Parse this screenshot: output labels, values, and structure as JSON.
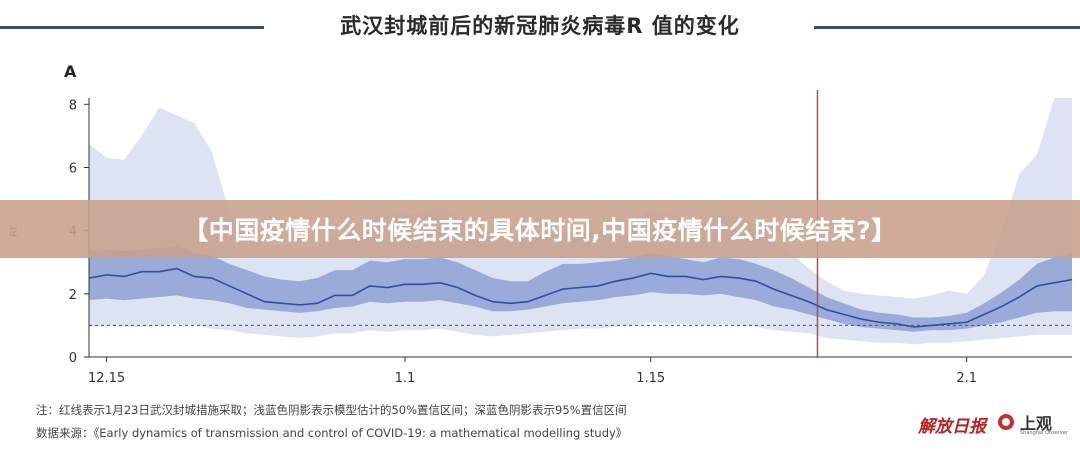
{
  "header": {
    "title": "武汉封城前后的新冠肺炎病毒R  值的变化",
    "panel_label": "A"
  },
  "banner": {
    "text": "【中国疫情什么时候结束的具体时间,中国疫情什么时候结束?】"
  },
  "footer": {
    "note": "注：红线表示1月23日武汉封城措施采取；浅蓝色阴影表示模型估计的50%置信区间；深蓝色阴影表示95%置信区间",
    "source": "数据来源：《Early dynamics of transmission and control of COVID-19: a mathematical modelling study》",
    "logo_left": "解放日报",
    "logo_right": "上观",
    "logo_right_sub": "Shanghai Observer"
  },
  "colors": {
    "median_line": "#2f4fa0",
    "band_outer": "#dde3f3",
    "band_inner": "#9aabd9",
    "lockdown_line": "#c8473d",
    "reference_line": "#555555",
    "title_rule": "#3a4a6b",
    "banner_bg": "#c8a08c"
  },
  "chart_data": {
    "type": "area",
    "title": "武汉封城前后的新冠肺炎病毒R  值的变化",
    "xlabel": "",
    "ylabel": "Rt",
    "x_tick_labels": [
      "12.15",
      "1.1",
      "1.15",
      "2.1"
    ],
    "x_tick_positions": [
      1,
      18,
      32,
      50
    ],
    "xlim": [
      0,
      56
    ],
    "y_ticks": [
      0,
      2,
      4,
      6,
      8
    ],
    "ylim": [
      0,
      8.2
    ],
    "grid": false,
    "reference_line": {
      "y": 1.0,
      "style": "dashed"
    },
    "event_line": {
      "x": 41.5,
      "label": "1月23日武汉封城"
    },
    "x": [
      0,
      1,
      2,
      3,
      4,
      5,
      6,
      7,
      8,
      9,
      10,
      11,
      12,
      13,
      14,
      15,
      16,
      17,
      18,
      19,
      20,
      21,
      22,
      23,
      24,
      25,
      26,
      27,
      28,
      29,
      30,
      31,
      32,
      33,
      34,
      35,
      36,
      37,
      38,
      39,
      40,
      41,
      42,
      43,
      44,
      45,
      46,
      47,
      48,
      49,
      50,
      51,
      52,
      53,
      54,
      55,
      56
    ],
    "series": [
      {
        "values": [
          2.5,
          2.6,
          2.55,
          2.7,
          2.7,
          2.8,
          2.55,
          2.5,
          2.25,
          2.0,
          1.75,
          1.7,
          1.65,
          1.7,
          1.95,
          1.95,
          2.25,
          2.2,
          2.3,
          2.3,
          2.35,
          2.2,
          1.95,
          1.75,
          1.7,
          1.75,
          1.95,
          2.15,
          2.2,
          2.25,
          2.4,
          2.5,
          2.65,
          2.55,
          2.55,
          2.45,
          2.55,
          2.5,
          2.4,
          2.15,
          1.95,
          1.75,
          1.5,
          1.35,
          1.2,
          1.1,
          1.05,
          0.95,
          1.0,
          1.05,
          1.1,
          1.35,
          1.6,
          1.9,
          2.25,
          2.35,
          2.45
        ]
      }
    ],
    "ci_50": {
      "lower": [
        1.8,
        1.85,
        1.8,
        1.85,
        1.9,
        1.95,
        1.85,
        1.8,
        1.7,
        1.55,
        1.5,
        1.45,
        1.4,
        1.45,
        1.55,
        1.6,
        1.75,
        1.7,
        1.75,
        1.75,
        1.8,
        1.7,
        1.6,
        1.45,
        1.45,
        1.5,
        1.6,
        1.7,
        1.75,
        1.8,
        1.9,
        1.95,
        2.05,
        2.0,
        2.0,
        1.95,
        2.0,
        1.9,
        1.8,
        1.6,
        1.5,
        1.35,
        1.2,
        1.05,
        0.95,
        0.9,
        0.85,
        0.8,
        0.85,
        0.85,
        0.9,
        1.0,
        1.1,
        1.25,
        1.4,
        1.45,
        1.45
      ],
      "upper": [
        3.35,
        3.4,
        3.35,
        3.4,
        3.45,
        3.5,
        3.3,
        3.2,
        2.95,
        2.75,
        2.55,
        2.45,
        2.4,
        2.5,
        2.75,
        2.75,
        3.05,
        3.0,
        3.1,
        3.1,
        3.15,
        3.0,
        2.75,
        2.5,
        2.4,
        2.4,
        2.7,
        2.95,
        2.95,
        3.0,
        3.05,
        3.15,
        3.3,
        3.2,
        3.1,
        3.0,
        3.15,
        3.1,
        2.95,
        2.75,
        2.5,
        2.2,
        1.9,
        1.7,
        1.5,
        1.4,
        1.35,
        1.25,
        1.25,
        1.3,
        1.4,
        1.7,
        2.05,
        2.45,
        2.95,
        3.15,
        3.3
      ]
    },
    "ci_95": {
      "lower": [
        0.95,
        1.0,
        0.95,
        0.95,
        1.0,
        1.05,
        1.0,
        0.9,
        0.85,
        0.75,
        0.7,
        0.65,
        0.6,
        0.65,
        0.75,
        0.75,
        0.85,
        0.8,
        0.85,
        0.85,
        0.9,
        0.8,
        0.7,
        0.65,
        0.7,
        0.75,
        0.8,
        0.85,
        0.9,
        0.9,
        0.95,
        1.0,
        1.1,
        1.05,
        1.05,
        1.0,
        1.05,
        1.0,
        0.95,
        0.85,
        0.8,
        0.75,
        0.6,
        0.55,
        0.5,
        0.45,
        0.45,
        0.4,
        0.45,
        0.45,
        0.5,
        0.55,
        0.6,
        0.65,
        0.7,
        0.7,
        0.7
      ],
      "upper": [
        6.75,
        6.3,
        6.25,
        7.0,
        7.9,
        7.65,
        7.4,
        6.5,
        4.6,
        4.0,
        3.6,
        3.5,
        3.45,
        3.5,
        3.9,
        4.1,
        4.4,
        4.5,
        4.5,
        4.6,
        4.75,
        4.5,
        4.0,
        3.8,
        3.8,
        3.7,
        3.9,
        4.0,
        3.9,
        4.0,
        4.05,
        4.2,
        4.7,
        4.5,
        4.4,
        4.3,
        4.5,
        4.45,
        4.2,
        3.7,
        3.3,
        2.8,
        2.4,
        2.1,
        2.0,
        1.95,
        1.9,
        1.85,
        1.95,
        2.1,
        2.0,
        2.6,
        4.0,
        5.8,
        6.4,
        8.2,
        8.2
      ]
    }
  }
}
